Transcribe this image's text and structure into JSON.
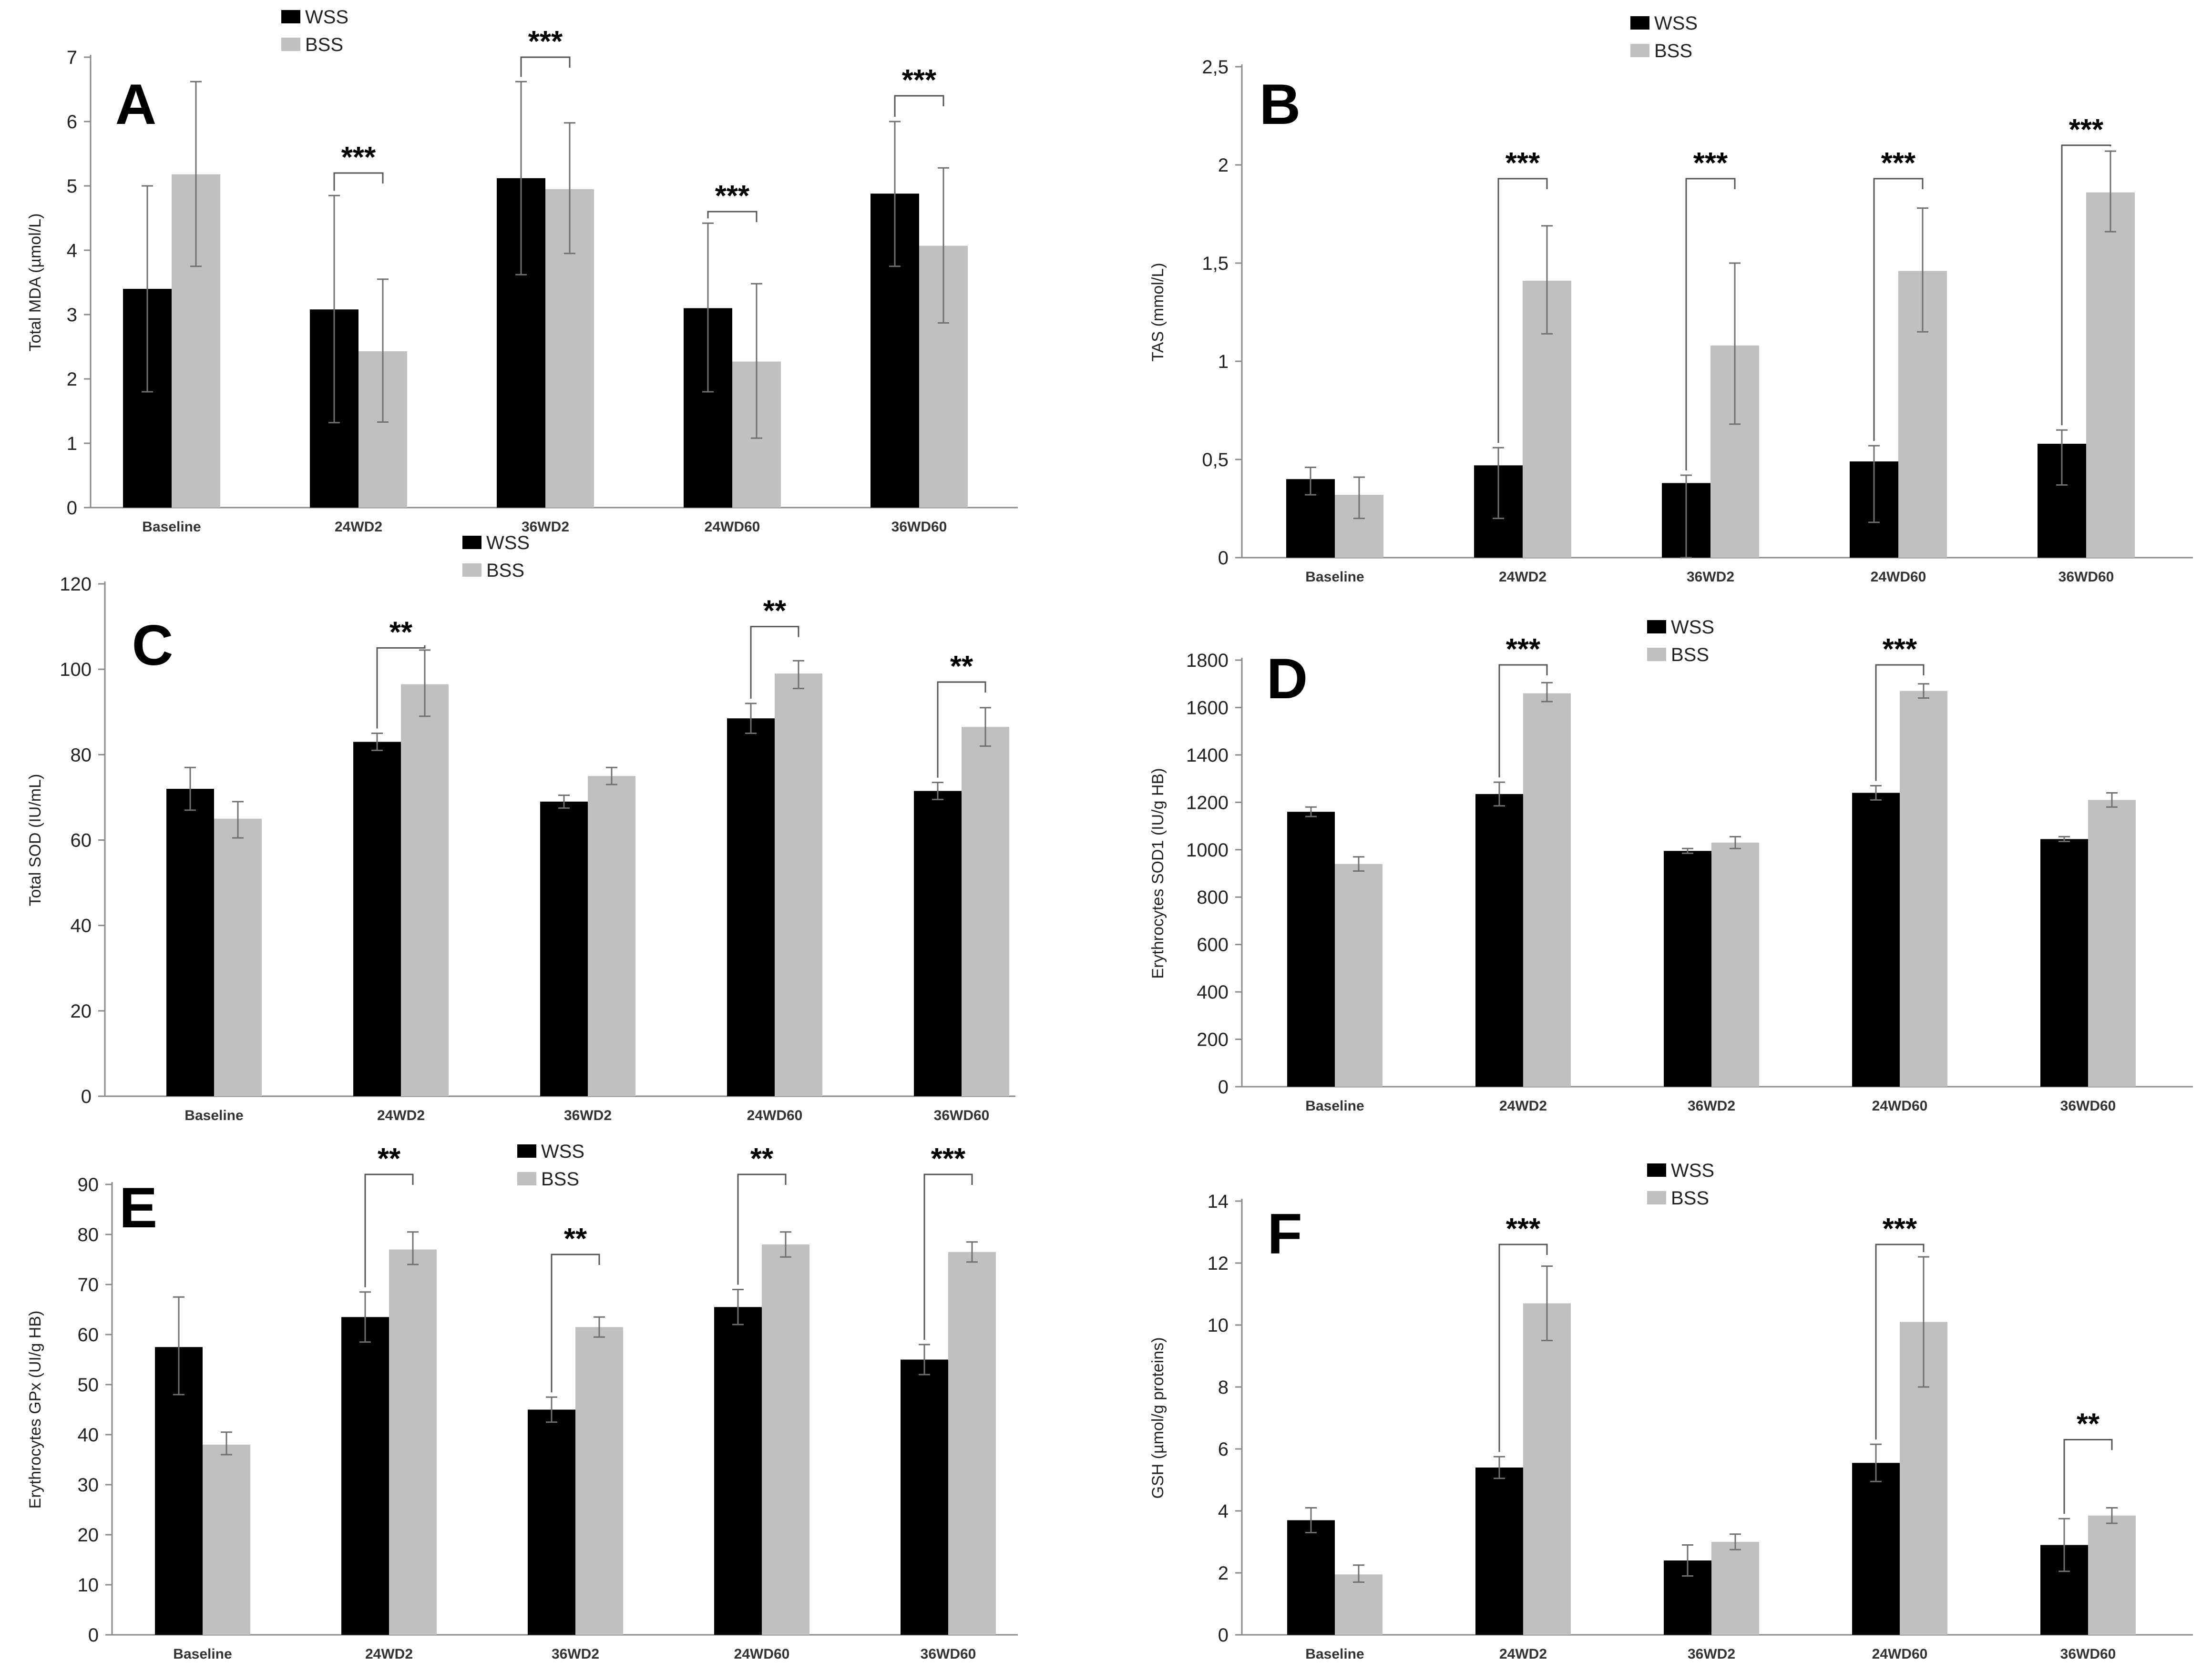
{
  "colors": {
    "wss": "#000000",
    "bss": "#c0c0c0",
    "axis": "#8a8a8a",
    "errbar": "#707070",
    "bracket": "#555555"
  },
  "chart_data": [
    {
      "panel": "A",
      "type": "bar",
      "ylabel": "Total MDA (µmol/L)",
      "categories": [
        "Baseline",
        "24WD2",
        "36WD2",
        "24WD60",
        "36WD60"
      ],
      "ylim": [
        0,
        7
      ],
      "yticks": [
        0,
        1,
        2,
        3,
        4,
        5,
        6,
        7
      ],
      "ytick_labels": [
        "0",
        "1",
        "2",
        "3",
        "4",
        "5",
        "6",
        "7"
      ],
      "legend": [
        "WSS",
        "BSS"
      ],
      "series": [
        {
          "name": "WSS",
          "values": [
            3.4,
            3.08,
            5.12,
            3.1,
            4.88
          ],
          "err_low": [
            1.8,
            1.32,
            3.62,
            1.8,
            3.75
          ],
          "err_high": [
            5.0,
            4.85,
            6.62,
            4.42,
            6.0
          ]
        },
        {
          "name": "BSS",
          "values": [
            5.18,
            2.43,
            4.95,
            2.27,
            4.07
          ],
          "err_low": [
            3.75,
            1.33,
            3.95,
            1.08,
            2.87
          ],
          "err_high": [
            6.62,
            3.55,
            5.98,
            3.48,
            5.28
          ]
        }
      ],
      "significance": [
        {
          "category": 1,
          "label": "***",
          "level": 5.2
        },
        {
          "category": 2,
          "label": "***",
          "level": 7.0
        },
        {
          "category": 3,
          "label": "***",
          "level": 4.6
        },
        {
          "category": 4,
          "label": "***",
          "level": 6.4
        }
      ]
    },
    {
      "panel": "B",
      "type": "bar",
      "ylabel": "TAS (mmol/L)",
      "categories": [
        "Baseline",
        "24WD2",
        "36WD2",
        "24WD60",
        "36WD60"
      ],
      "ylim": [
        0,
        2.5
      ],
      "yticks": [
        0,
        0.5,
        1,
        1.5,
        2,
        2.5
      ],
      "ytick_labels": [
        "0",
        "0,5",
        "1",
        "1,5",
        "2",
        "2,5"
      ],
      "legend": [
        "WSS",
        "BSS"
      ],
      "series": [
        {
          "name": "WSS",
          "values": [
            0.4,
            0.47,
            0.38,
            0.49,
            0.58
          ],
          "err_low": [
            0.32,
            0.2,
            0.0,
            0.18,
            0.37
          ],
          "err_high": [
            0.46,
            0.56,
            0.42,
            0.57,
            0.65
          ]
        },
        {
          "name": "BSS",
          "values": [
            0.32,
            1.41,
            1.08,
            1.46,
            1.86
          ],
          "err_low": [
            0.2,
            1.14,
            0.68,
            1.15,
            1.66
          ],
          "err_high": [
            0.41,
            1.69,
            1.5,
            1.78,
            2.07
          ]
        }
      ],
      "significance": [
        {
          "category": 1,
          "label": "***",
          "level": 1.93
        },
        {
          "category": 2,
          "label": "***",
          "level": 1.93
        },
        {
          "category": 3,
          "label": "***",
          "level": 1.93
        },
        {
          "category": 4,
          "label": "***",
          "level": 2.1
        }
      ]
    },
    {
      "panel": "C",
      "type": "bar",
      "ylabel": "Total SOD (IU/mL)",
      "categories": [
        "Baseline",
        "24WD2",
        "36WD2",
        "24WD60",
        "36WD60"
      ],
      "ylim": [
        0,
        120
      ],
      "yticks": [
        0,
        20,
        40,
        60,
        80,
        100,
        120
      ],
      "ytick_labels": [
        "0",
        "20",
        "40",
        "60",
        "80",
        "100",
        "120"
      ],
      "legend": [
        "WSS",
        "BSS"
      ],
      "series": [
        {
          "name": "WSS",
          "values": [
            72,
            83,
            69,
            88.5,
            71.5
          ],
          "err_low": [
            67,
            81,
            67.5,
            85,
            69.5
          ],
          "err_high": [
            77,
            85,
            70.5,
            92,
            73.5
          ]
        },
        {
          "name": "BSS",
          "values": [
            65,
            96.5,
            75,
            99,
            86.5
          ],
          "err_low": [
            60.5,
            89,
            73,
            95.5,
            82
          ],
          "err_high": [
            69,
            104.5,
            77,
            102,
            91
          ]
        }
      ],
      "significance": [
        {
          "category": 1,
          "label": "**",
          "level": 105
        },
        {
          "category": 3,
          "label": "**",
          "level": 110
        },
        {
          "category": 4,
          "label": "**",
          "level": 97
        }
      ]
    },
    {
      "panel": "D",
      "type": "bar",
      "ylabel": "Erythrocytes SOD1 (IU/g HB)",
      "categories": [
        "Baseline",
        "24WD2",
        "36WD2",
        "24WD60",
        "36WD60"
      ],
      "ylim": [
        0,
        1800
      ],
      "yticks": [
        0,
        200,
        400,
        600,
        800,
        1000,
        1200,
        1400,
        1600,
        1800
      ],
      "ytick_labels": [
        "0",
        "200",
        "400",
        "600",
        "800",
        "1000",
        "1200",
        "1400",
        "1600",
        "1800"
      ],
      "legend": [
        "WSS",
        "BSS"
      ],
      "series": [
        {
          "name": "WSS",
          "values": [
            1160,
            1235,
            995,
            1240,
            1045
          ],
          "err_low": [
            1140,
            1185,
            985,
            1210,
            1035
          ],
          "err_high": [
            1180,
            1285,
            1005,
            1270,
            1055
          ]
        },
        {
          "name": "BSS",
          "values": [
            940,
            1660,
            1030,
            1670,
            1210
          ],
          "err_low": [
            910,
            1625,
            1005,
            1640,
            1180
          ],
          "err_high": [
            970,
            1705,
            1055,
            1700,
            1240
          ]
        }
      ],
      "significance": [
        {
          "category": 1,
          "label": "***",
          "level": 1780
        },
        {
          "category": 3,
          "label": "***",
          "level": 1780
        }
      ]
    },
    {
      "panel": "E",
      "type": "bar",
      "ylabel": "Erythrocytes GPx (UI/g HB)",
      "categories": [
        "Baseline",
        "24WD2",
        "36WD2",
        "24WD60",
        "36WD60"
      ],
      "ylim": [
        0,
        90
      ],
      "yticks": [
        0,
        10,
        20,
        30,
        40,
        50,
        60,
        70,
        80,
        90
      ],
      "ytick_labels": [
        "0",
        "10",
        "20",
        "30",
        "40",
        "50",
        "60",
        "70",
        "80",
        "90"
      ],
      "legend": [
        "WSS",
        "BSS"
      ],
      "series": [
        {
          "name": "WSS",
          "values": [
            57.5,
            63.5,
            45,
            65.5,
            55
          ],
          "err_low": [
            48,
            58.5,
            42.5,
            62,
            52
          ],
          "err_high": [
            67.5,
            68.5,
            47.5,
            69,
            58
          ]
        },
        {
          "name": "BSS",
          "values": [
            38,
            77,
            61.5,
            78,
            76.5
          ],
          "err_low": [
            36,
            74,
            59.5,
            75.5,
            74.5
          ],
          "err_high": [
            40.5,
            80.5,
            63.5,
            80.5,
            78.5
          ]
        }
      ],
      "significance": [
        {
          "category": 1,
          "label": "**",
          "level": 92
        },
        {
          "category": 2,
          "label": "**",
          "level": 76
        },
        {
          "category": 3,
          "label": "**",
          "level": 92
        },
        {
          "category": 4,
          "label": "***",
          "level": 92
        }
      ]
    },
    {
      "panel": "F",
      "type": "bar",
      "ylabel": "GSH (µmol/g proteins)",
      "categories": [
        "Baseline",
        "24WD2",
        "36WD2",
        "24WD60",
        "36WD60"
      ],
      "ylim": [
        0,
        14
      ],
      "yticks": [
        0,
        2,
        4,
        6,
        8,
        10,
        12,
        14
      ],
      "ytick_labels": [
        "0",
        "2",
        "4",
        "6",
        "8",
        "10",
        "12",
        "14"
      ],
      "legend": [
        "WSS",
        "BSS"
      ],
      "series": [
        {
          "name": "WSS",
          "values": [
            3.7,
            5.4,
            2.4,
            5.55,
            2.9
          ],
          "err_low": [
            3.3,
            5.05,
            1.9,
            4.95,
            2.05
          ],
          "err_high": [
            4.1,
            5.75,
            2.9,
            6.15,
            3.75
          ]
        },
        {
          "name": "BSS",
          "values": [
            1.95,
            10.7,
            3.0,
            10.1,
            3.85
          ],
          "err_low": [
            1.7,
            9.5,
            2.75,
            8.0,
            3.6
          ],
          "err_high": [
            2.25,
            11.9,
            3.25,
            12.2,
            4.1
          ]
        }
      ],
      "significance": [
        {
          "category": 1,
          "label": "***",
          "level": 12.6
        },
        {
          "category": 3,
          "label": "***",
          "level": 12.6
        },
        {
          "category": 4,
          "label": "**",
          "level": 6.3
        }
      ]
    }
  ]
}
